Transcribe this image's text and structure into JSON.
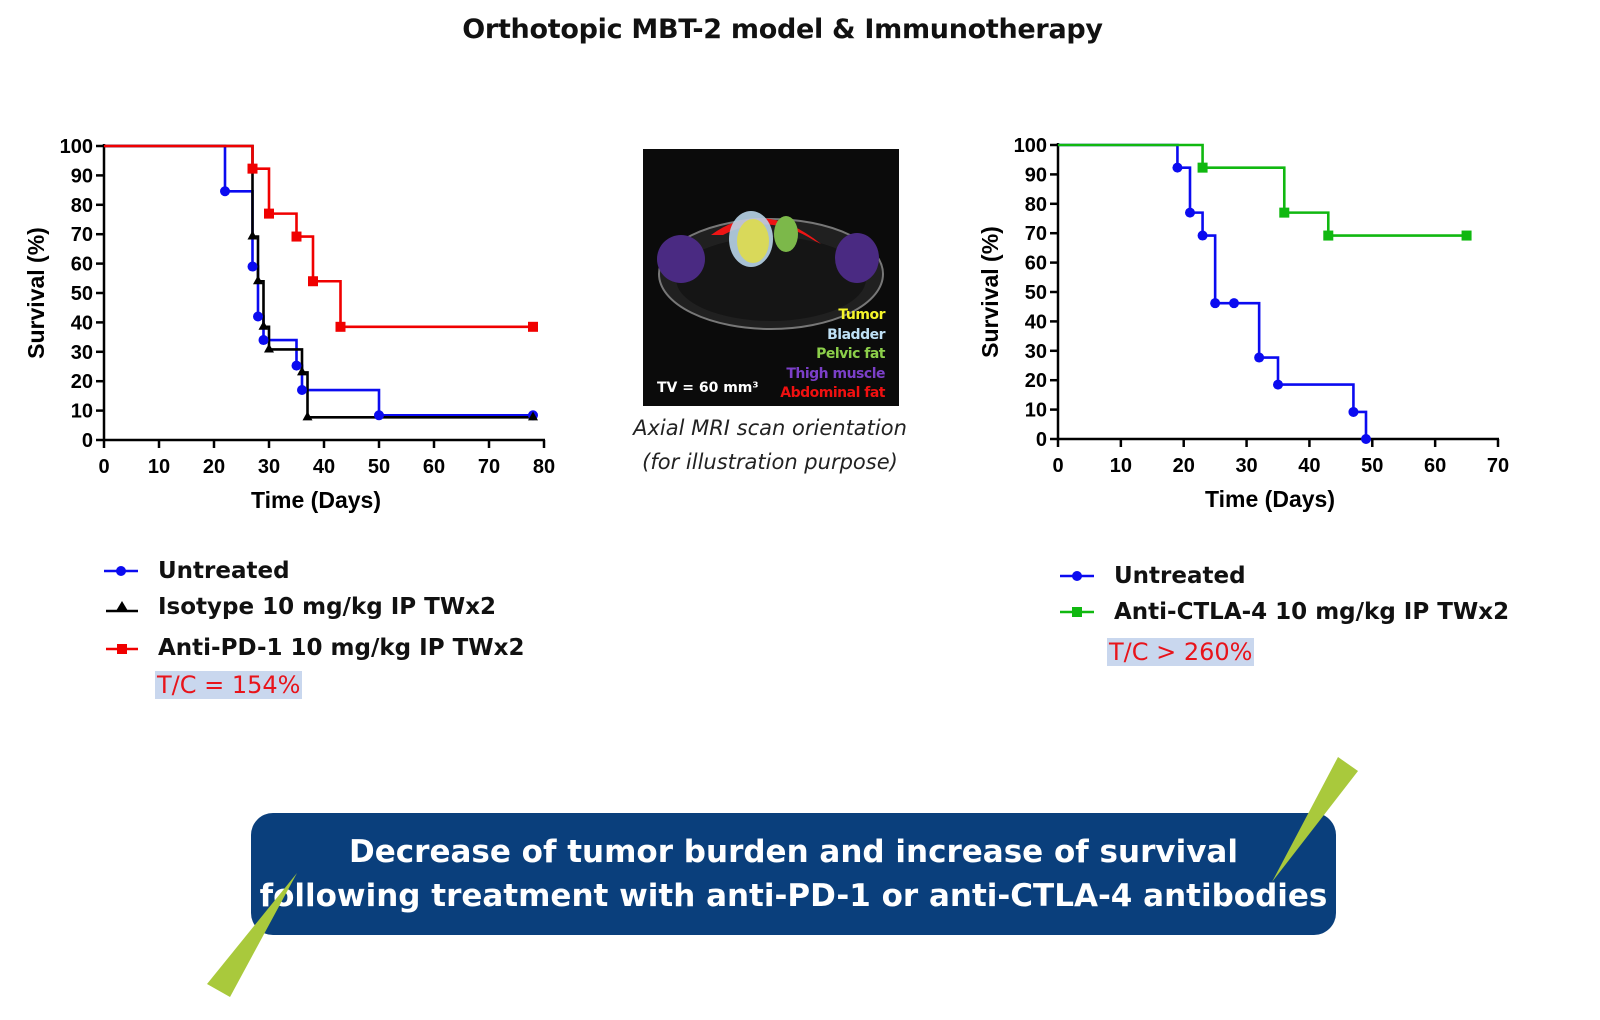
{
  "title": "Orthotopic MBT-2 model & Immunotherapy",
  "colors": {
    "blue": "#0b0bf0",
    "black": "#000000",
    "red": "#f00000",
    "green": "#10b810",
    "tc_text": "#e8141b",
    "tc_bg": "#c9d7ee",
    "banner": "#0a3f7c",
    "accent_triangle": "#a9c93c"
  },
  "chart_data": [
    {
      "type": "line",
      "style": "step (Kaplan-Meier)",
      "xlabel": "Time (Days)",
      "ylabel": "Survival (%)",
      "xlim": [
        0,
        80
      ],
      "ylim": [
        0,
        100
      ],
      "xticks": [
        0,
        10,
        20,
        30,
        40,
        50,
        60,
        70,
        80
      ],
      "yticks": [
        0,
        10,
        20,
        30,
        40,
        50,
        60,
        70,
        80,
        90,
        100
      ],
      "grid": false,
      "legend_position": "below",
      "series": [
        {
          "name": "Untreated",
          "color": "#0b0bf0",
          "marker": "circle",
          "x": [
            22,
            27,
            28,
            29,
            35,
            36,
            50,
            78
          ],
          "y": [
            84.6,
            59,
            42,
            34,
            25.3,
            17,
            8.4,
            8.4
          ]
        },
        {
          "name": "Isotype 10 mg/kg IP TWx2",
          "color": "#000000",
          "marker": "triangle",
          "x": [
            27,
            28,
            29,
            30,
            36,
            37,
            78
          ],
          "y": [
            69.2,
            54,
            38.5,
            30.8,
            23,
            7.7,
            7.7
          ]
        },
        {
          "name": "Anti-PD-1 10 mg/kg IP TWx2",
          "color": "#f00000",
          "marker": "square",
          "x": [
            27,
            30,
            35,
            38,
            43,
            78
          ],
          "y": [
            92.3,
            77,
            69.2,
            54,
            38.5,
            38.5
          ]
        }
      ],
      "annotation": "T/C = 154%"
    },
    {
      "type": "line",
      "style": "step (Kaplan-Meier)",
      "xlabel": "Time (Days)",
      "ylabel": "Survival (%)",
      "xlim": [
        0,
        70
      ],
      "ylim": [
        0,
        100
      ],
      "xticks": [
        0,
        10,
        20,
        30,
        40,
        50,
        60,
        70
      ],
      "yticks": [
        0,
        10,
        20,
        30,
        40,
        50,
        60,
        70,
        80,
        90,
        100
      ],
      "grid": false,
      "legend_position": "below",
      "series": [
        {
          "name": "Untreated",
          "color": "#0b0bf0",
          "marker": "circle",
          "x": [
            19,
            21,
            23,
            25,
            28,
            32,
            35,
            47,
            49
          ],
          "y": [
            92.3,
            77,
            69.2,
            46.2,
            46.2,
            27.7,
            18.5,
            9.2,
            0
          ]
        },
        {
          "name": "Anti-CTLA-4 10 mg/kg IP TWx2",
          "color": "#10b810",
          "marker": "square",
          "x": [
            23,
            36,
            43,
            65
          ],
          "y": [
            92.3,
            77,
            69.2,
            69.2
          ]
        }
      ],
      "annotation": "T/C  > 260%"
    }
  ],
  "mri": {
    "labels": [
      "Tumor",
      "Bladder",
      "Pelvic fat",
      "Thigh muscle",
      "Abdominal fat"
    ],
    "label_colors": [
      "#f5f52a",
      "#bfe0f5",
      "#8ccf4a",
      "#7b3fc8",
      "#f01010"
    ],
    "volume": "TV = 60 mm³",
    "caption_1": "Axial MRI scan orientation",
    "caption_2": "(for illustration purpose)"
  },
  "banner": {
    "line1": "Decrease of tumor burden  and increase of survival",
    "line2": "following treatment with anti-PD-1 or anti-CTLA-4 antibodies"
  }
}
